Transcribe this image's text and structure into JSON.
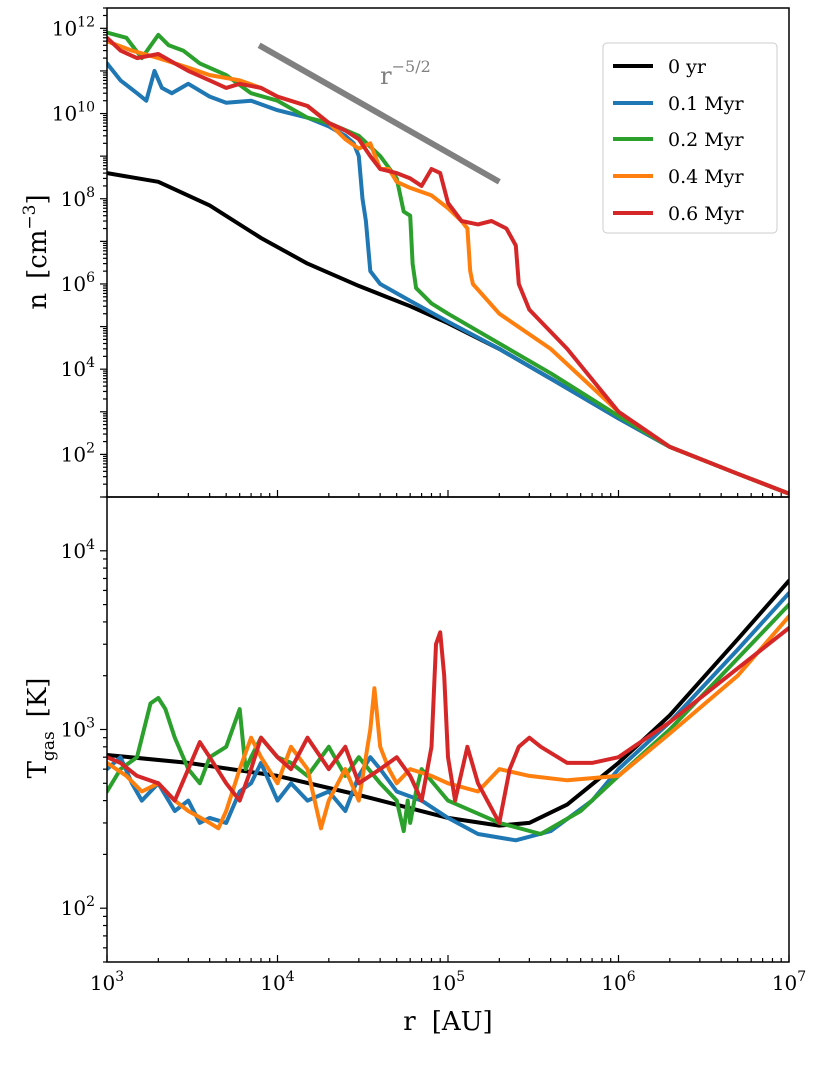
{
  "chart_data": [
    {
      "type": "line",
      "panel": "top",
      "xscale": "log",
      "yscale": "log",
      "xlim": [
        1000,
        10000000
      ],
      "ylim": [
        10,
        3000000000000
      ],
      "ylabel": "n",
      "ylabel_unit": "[cm",
      "ylabel_unit_exp": "−3",
      "ylabel_unit_close": "]",
      "yticks": [
        {
          "value": 100,
          "base": "10",
          "exp": "2"
        },
        {
          "value": 10000,
          "base": "10",
          "exp": "4"
        },
        {
          "value": 1000000,
          "base": "10",
          "exp": "6"
        },
        {
          "value": 100000000,
          "base": "10",
          "exp": "8"
        },
        {
          "value": 10000000000,
          "base": "10",
          "exp": "10"
        },
        {
          "value": 1000000000000,
          "base": "10",
          "exp": "12"
        }
      ],
      "legend_position": "top-right",
      "annotation": {
        "base": "r",
        "exp": "−5/2",
        "line": {
          "x": [
            7800,
            200000
          ],
          "y": [
            400000000000,
            250000000
          ]
        },
        "text_at": {
          "x": 40000,
          "y": 50000000000
        },
        "color": "#808080"
      },
      "series": [
        {
          "name": "0 yr",
          "color": "#000000",
          "x": [
            1000,
            2000,
            4000,
            8000,
            15000,
            30000,
            60000,
            100000,
            200000,
            400000,
            1000000,
            2000000,
            5000000,
            10000000
          ],
          "y": [
            400000000,
            250000000,
            70000000,
            12000000,
            3000000,
            900000,
            300000,
            120000,
            30000,
            6000,
            700,
            150,
            35,
            12
          ]
        },
        {
          "name": "0.1 Myr",
          "color": "#1f77b4",
          "x": [
            1000,
            1200,
            1500,
            1700,
            1900,
            2100,
            2400,
            3000,
            4000,
            5000,
            7000,
            10000,
            15000,
            20000,
            25000,
            28000,
            30000,
            31500,
            33000,
            35000,
            40000,
            60000,
            100000,
            200000,
            400000,
            1000000,
            2000000,
            5000000,
            10000000
          ],
          "y": [
            150000000000,
            60000000000,
            30000000000,
            20000000000,
            100000000000,
            40000000000,
            30000000000,
            50000000000,
            25000000000,
            18000000000,
            20000000000,
            12000000000,
            8000000000,
            5000000000,
            3000000000,
            2000000000,
            1000000000,
            100000000,
            30000000,
            2000000,
            1000000,
            400000,
            130000,
            30000,
            6000,
            700,
            150,
            35,
            12
          ]
        },
        {
          "name": "0.2 Myr",
          "color": "#2ca02c",
          "x": [
            1000,
            1300,
            1600,
            2000,
            2300,
            2800,
            3500,
            5000,
            7000,
            10000,
            15000,
            20000,
            30000,
            40000,
            50000,
            55000,
            60000,
            62000,
            65000,
            80000,
            100000,
            200000,
            400000,
            1000000,
            2000000,
            5000000,
            10000000
          ],
          "y": [
            800000000000,
            600000000000,
            200000000000,
            700000000000,
            400000000000,
            300000000000,
            150000000000,
            80000000000,
            30000000000,
            20000000000,
            8000000000,
            6000000000,
            3000000000,
            1000000000,
            300000000,
            50000000,
            40000000,
            3000000,
            800000,
            350000,
            200000,
            40000,
            8000,
            800,
            150,
            35,
            12
          ]
        },
        {
          "name": "0.4 Myr",
          "color": "#ff7f0e",
          "x": [
            1000,
            1400,
            2000,
            3000,
            4000,
            6000,
            8000,
            10000,
            15000,
            20000,
            25000,
            30000,
            35000,
            40000,
            45000,
            50000,
            60000,
            80000,
            100000,
            120000,
            130000,
            135000,
            140000,
            200000,
            400000,
            1000000,
            2000000,
            5000000,
            10000000
          ],
          "y": [
            500000000000,
            300000000000,
            200000000000,
            120000000000,
            80000000000,
            60000000000,
            40000000000,
            25000000000,
            15000000000,
            6000000000,
            2500000000,
            1500000000,
            2000000000,
            500000000,
            500000000,
            250000000,
            180000000,
            120000000,
            60000000,
            30000000,
            20000000,
            2000000,
            1000000,
            200000,
            30000,
            1000,
            150,
            35,
            12
          ]
        },
        {
          "name": "0.6 Myr",
          "color": "#d62728",
          "x": [
            1000,
            1200,
            1500,
            2000,
            2500,
            3000,
            4000,
            5000,
            6000,
            8000,
            10000,
            15000,
            20000,
            25000,
            30000,
            35000,
            40000,
            50000,
            60000,
            70000,
            80000,
            90000,
            100000,
            120000,
            150000,
            180000,
            220000,
            250000,
            260000,
            300000,
            500000,
            1000000,
            2000000,
            5000000,
            10000000
          ],
          "y": [
            600000000000,
            300000000000,
            200000000000,
            250000000000,
            150000000000,
            100000000000,
            60000000000,
            40000000000,
            50000000000,
            40000000000,
            25000000000,
            15000000000,
            6000000000,
            4000000000,
            2500000000,
            1000000000,
            500000000,
            400000000,
            300000000,
            200000000,
            500000000,
            400000000,
            80000000,
            30000000,
            25000000,
            30000000,
            20000000,
            8000000,
            1000000,
            250000,
            30000,
            1000,
            150,
            35,
            12
          ]
        }
      ]
    },
    {
      "type": "line",
      "panel": "bottom",
      "xscale": "log",
      "yscale": "log",
      "xlim": [
        1000,
        10000000
      ],
      "ylim": [
        50,
        20000
      ],
      "xlabel": "r",
      "xlabel_unit": "[AU]",
      "ylabel": "T",
      "ylabel_sub": "gas",
      "ylabel_unit": "[K]",
      "xticks": [
        {
          "value": 1000,
          "base": "10",
          "exp": "3"
        },
        {
          "value": 10000,
          "base": "10",
          "exp": "4"
        },
        {
          "value": 100000,
          "base": "10",
          "exp": "5"
        },
        {
          "value": 1000000,
          "base": "10",
          "exp": "6"
        },
        {
          "value": 10000000,
          "base": "10",
          "exp": "7"
        }
      ],
      "yticks": [
        {
          "value": 100,
          "base": "10",
          "exp": "2"
        },
        {
          "value": 1000,
          "base": "10",
          "exp": "3"
        },
        {
          "value": 10000,
          "base": "10",
          "exp": "4"
        }
      ],
      "series": [
        {
          "name": "0 yr",
          "color": "#000000",
          "x": [
            1000,
            3000,
            10000,
            30000,
            100000,
            200000,
            300000,
            500000,
            1000000,
            2000000,
            5000000,
            10000000
          ],
          "y": [
            720,
            650,
            550,
            430,
            320,
            290,
            300,
            380,
            650,
            1200,
            3200,
            6800
          ]
        },
        {
          "name": "0.1 Myr",
          "color": "#1f77b4",
          "x": [
            1000,
            1200,
            1400,
            1600,
            2000,
            2500,
            3000,
            3500,
            4000,
            5000,
            6000,
            7000,
            8000,
            10000,
            12000,
            15000,
            20000,
            25000,
            30000,
            35000,
            40000,
            50000,
            70000,
            100000,
            150000,
            250000,
            400000,
            700000,
            1000000,
            2000000,
            5000000,
            10000000
          ],
          "y": [
            600,
            700,
            500,
            400,
            500,
            350,
            400,
            300,
            320,
            300,
            450,
            500,
            650,
            400,
            500,
            400,
            450,
            350,
            550,
            700,
            600,
            450,
            400,
            320,
            260,
            240,
            270,
            400,
            600,
            1100,
            2800,
            5800
          ]
        },
        {
          "name": "0.2 Myr",
          "color": "#2ca02c",
          "x": [
            1000,
            1200,
            1500,
            1800,
            2000,
            2200,
            2500,
            3000,
            3500,
            4000,
            5000,
            6000,
            6500,
            7000,
            8000,
            10000,
            12000,
            15000,
            20000,
            25000,
            30000,
            40000,
            50000,
            55000,
            58000,
            60000,
            65000,
            70000,
            100000,
            200000,
            350000,
            600000,
            1000000,
            2000000,
            5000000,
            10000000
          ],
          "y": [
            450,
            600,
            700,
            1400,
            1500,
            1300,
            900,
            600,
            500,
            700,
            800,
            1300,
            600,
            700,
            900,
            700,
            650,
            550,
            800,
            550,
            700,
            500,
            400,
            270,
            400,
            300,
            450,
            600,
            400,
            300,
            260,
            350,
            550,
            1000,
            2500,
            5000
          ]
        },
        {
          "name": "0.4 Myr",
          "color": "#ff7f0e",
          "x": [
            1000,
            1300,
            1600,
            2000,
            2500,
            3000,
            4000,
            4500,
            5000,
            6000,
            7000,
            8000,
            10000,
            12000,
            15000,
            18000,
            20000,
            25000,
            30000,
            35000,
            37000,
            40000,
            45000,
            50000,
            60000,
            80000,
            100000,
            150000,
            200000,
            300000,
            500000,
            1000000,
            2000000,
            5000000,
            10000000
          ],
          "y": [
            650,
            550,
            450,
            500,
            400,
            350,
            300,
            280,
            350,
            600,
            900,
            700,
            500,
            800,
            600,
            280,
            400,
            600,
            400,
            1000,
            1700,
            800,
            600,
            500,
            600,
            550,
            500,
            450,
            600,
            550,
            520,
            550,
            950,
            2000,
            4300
          ]
        },
        {
          "name": "0.6 Myr",
          "color": "#d62728",
          "x": [
            1000,
            1200,
            1500,
            2000,
            2500,
            3000,
            3500,
            4000,
            5000,
            6000,
            7000,
            8000,
            10000,
            12000,
            15000,
            20000,
            25000,
            30000,
            40000,
            50000,
            60000,
            70000,
            80000,
            85000,
            90000,
            95000,
            100000,
            110000,
            130000,
            150000,
            200000,
            230000,
            260000,
            300000,
            350000,
            500000,
            700000,
            1000000,
            2000000,
            5000000,
            10000000
          ],
          "y": [
            700,
            650,
            550,
            500,
            400,
            600,
            850,
            700,
            500,
            400,
            600,
            900,
            700,
            600,
            900,
            600,
            800,
            500,
            600,
            700,
            550,
            400,
            800,
            3000,
            3500,
            2000,
            700,
            400,
            800,
            500,
            300,
            600,
            800,
            900,
            800,
            650,
            650,
            700,
            1100,
            2200,
            3700
          ]
        }
      ]
    }
  ]
}
